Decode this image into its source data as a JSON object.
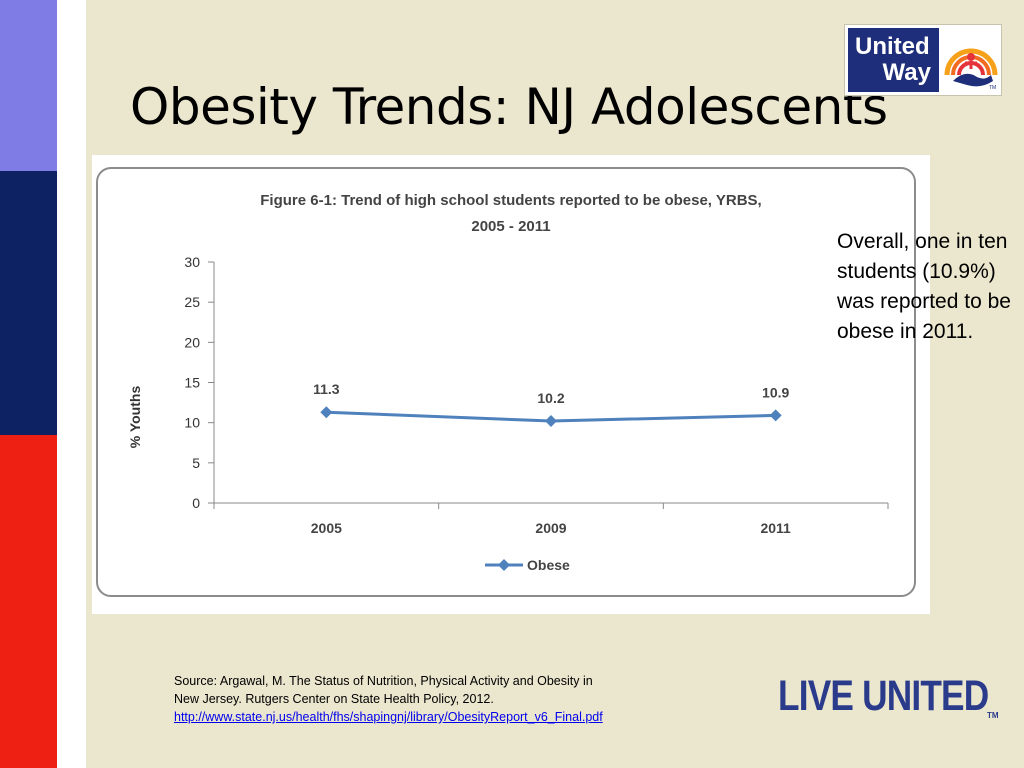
{
  "slide": {
    "title": "Obesity Trends: NJ Adolescents",
    "colors": {
      "background": "#ebe6ce",
      "stripe_purple": "#7f7ce6",
      "stripe_navy": "#0d2262",
      "stripe_red": "#ee2013",
      "series": "#4f81bd"
    }
  },
  "logo": {
    "line1": "United",
    "line2": "Way",
    "icon": "united-way-hand-rainbow-icon"
  },
  "side_note": "Overall, one in ten students (10.9%) was reported to be obese in 2011.",
  "source": {
    "line1": "Source: Argawal, M. The Status of Nutrition, Physical Activity and Obesity in",
    "line2": "New Jersey. Rutgers Center on State Health Policy, 2012.",
    "link": "http://www.state.nj.us/health/fhs/shapingnj/library/ObesityReport_v6_Final.pdf"
  },
  "footer_brand": {
    "text": "LIVE UNITED",
    "tm": "TM"
  },
  "chart_data": {
    "type": "line",
    "title_line1": "Figure 6-1: Trend of high school students reported to be obese, YRBS,",
    "title_line2": "2005 - 2011",
    "xlabel": "",
    "ylabel": "% Youths",
    "categories": [
      "2005",
      "2009",
      "2011"
    ],
    "series": [
      {
        "name": "Obese",
        "values": [
          11.3,
          10.2,
          10.9
        ],
        "color": "#4f81bd"
      }
    ],
    "data_labels": [
      "11.3",
      "10.2",
      "10.9"
    ],
    "ylim": [
      0,
      30
    ],
    "yticks": [
      0,
      5,
      10,
      15,
      20,
      25,
      30
    ],
    "grid": false,
    "legend_position": "bottom"
  }
}
